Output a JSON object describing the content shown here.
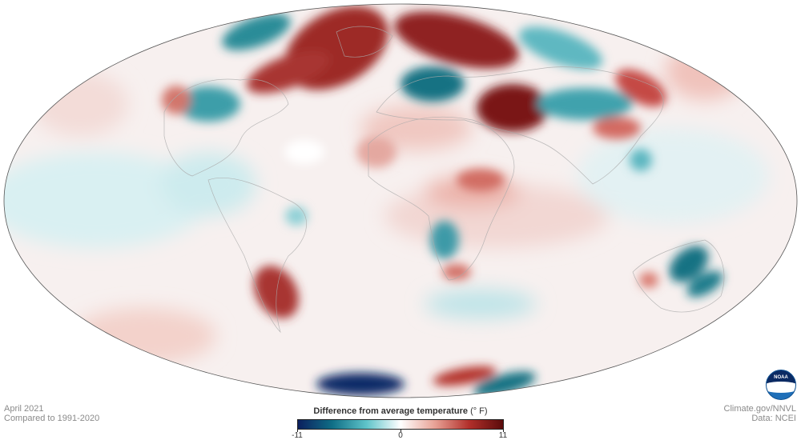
{
  "period": "April 2021",
  "baseline": "Compared to 1991-2020",
  "legend": {
    "title": "Difference from average temperature",
    "unit": "(° F)",
    "min_label": "-11",
    "mid_label": "0",
    "max_label": "11",
    "min_value": -11,
    "max_value": 11,
    "colors": [
      "#0c1f5e",
      "#0f6e86",
      "#5ec3c9",
      "#ffffff",
      "#e8a296",
      "#b2302b",
      "#5a0b0b"
    ]
  },
  "credit": "Climate.gov/NNVL",
  "data_source": "Data: NCEI",
  "logo": "NOAA"
}
